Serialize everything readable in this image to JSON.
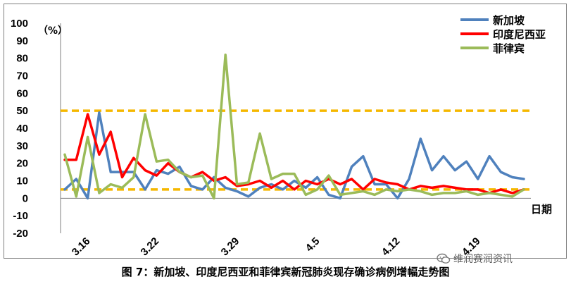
{
  "chart_data": {
    "type": "line",
    "unit_label": "（%）",
    "xlabel": "日期",
    "ylim": [
      -20,
      100
    ],
    "yticks": [
      -20,
      -10,
      0,
      10,
      20,
      30,
      40,
      50,
      60,
      70,
      80,
      90,
      100
    ],
    "x_tick_labels": [
      {
        "index": 2,
        "label": "3.16"
      },
      {
        "index": 8,
        "label": "3.22"
      },
      {
        "index": 15,
        "label": "3.29"
      },
      {
        "index": 22,
        "label": "4.5"
      },
      {
        "index": 29,
        "label": "4.12"
      },
      {
        "index": 36,
        "label": "4.19"
      }
    ],
    "reference_lines": [
      50,
      5
    ],
    "reference_line_color": "#f5b800",
    "legend_position": "top-right",
    "series": [
      {
        "name": "新加坡",
        "color": "#4f81bd",
        "values": [
          5,
          11,
          0,
          49,
          15,
          15,
          15,
          5,
          16,
          14,
          18,
          7,
          5,
          12,
          6,
          4,
          1,
          6,
          8,
          5,
          10,
          6,
          12,
          2,
          0,
          18,
          24,
          8,
          8,
          0,
          11,
          34,
          16,
          24,
          16,
          21,
          11,
          24,
          15,
          12,
          11
        ]
      },
      {
        "name": "印度尼西亚",
        "color": "#ff0000",
        "values": [
          22,
          22,
          48,
          25,
          38,
          12,
          23,
          16,
          13,
          20,
          15,
          12,
          15,
          10,
          12,
          7,
          8,
          10,
          6,
          10,
          5,
          10,
          8,
          11,
          8,
          11,
          5,
          11,
          9,
          8,
          5,
          7,
          6,
          7,
          6,
          5,
          5,
          3,
          5,
          3,
          5
        ]
      },
      {
        "name": "菲律宾",
        "color": "#9bbb59",
        "values": [
          25,
          1,
          35,
          3,
          8,
          6,
          12,
          48,
          21,
          22,
          15,
          12,
          13,
          0,
          82,
          8,
          9,
          37,
          11,
          14,
          14,
          2,
          5,
          13,
          2,
          3,
          4,
          2,
          5,
          4,
          5,
          4,
          2,
          3,
          3,
          4,
          2,
          3,
          2,
          1,
          5
        ]
      }
    ]
  },
  "caption": "图 7：新加坡、印度尼西亚和菲律宾新冠肺炎现存确诊病例增幅走势图",
  "watermark": "维润赛润资讯"
}
